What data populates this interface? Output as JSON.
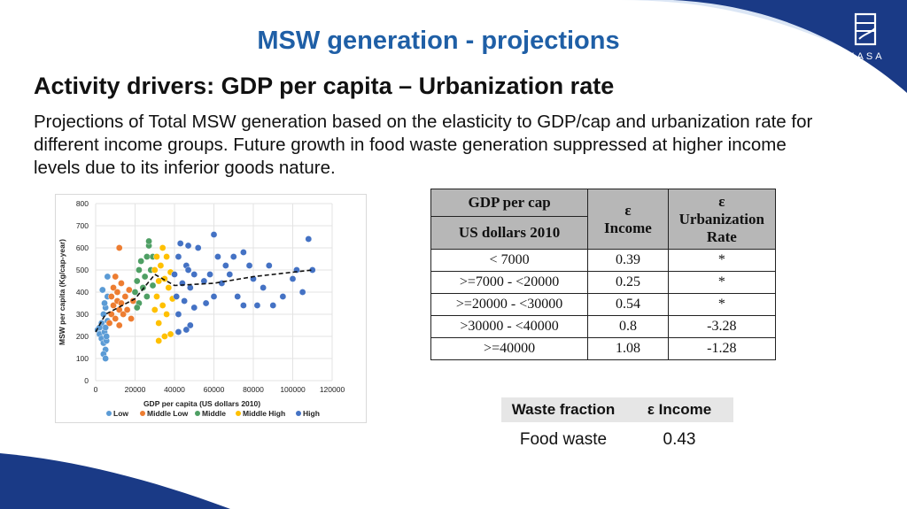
{
  "header": {
    "logo_text": "IIASA",
    "title": "MSW generation - projections"
  },
  "subtitle": "Activity drivers: GDP per capita – Urbanization rate",
  "description": "Projections of Total MSW generation based on the elasticity to GDP/cap and urbanization rate for different income groups. Future growth in food waste generation suppressed at higher income levels due to its inferior goods nature.",
  "colors": {
    "title": "#1f5fa6",
    "brand_navy": "#1a3a86",
    "low": "#5b9bd5",
    "middle_low": "#ed7d31",
    "middle": "#4e9f64",
    "middle_high": "#ffc000",
    "high": "#4472c4"
  },
  "chart_data": {
    "type": "scatter",
    "xlabel": "GDP per capita (US dollars 2010)",
    "ylabel": "MSW per capita (Kg/cap-year)",
    "xlim": [
      0,
      120000
    ],
    "ylim": [
      0,
      800
    ],
    "x_ticks": [
      "0",
      "20000",
      "40000",
      "60000",
      "80000",
      "100000",
      "120000"
    ],
    "y_ticks": [
      "0",
      "100",
      "200",
      "300",
      "400",
      "500",
      "600",
      "700",
      "800"
    ],
    "grid": true,
    "legend_position": "bottom",
    "series": [
      {
        "name": "Low",
        "color": "#5b9bd5",
        "points": [
          [
            1000,
            230
          ],
          [
            2000,
            210
          ],
          [
            3000,
            190
          ],
          [
            3000,
            260
          ],
          [
            4000,
            170
          ],
          [
            4000,
            300
          ],
          [
            4500,
            220
          ],
          [
            5000,
            140
          ],
          [
            5000,
            240
          ],
          [
            5000,
            330
          ],
          [
            5500,
            180
          ],
          [
            6000,
            270
          ],
          [
            6000,
            380
          ],
          [
            4000,
            120
          ],
          [
            5000,
            100
          ],
          [
            3500,
            410
          ],
          [
            6000,
            470
          ],
          [
            2000,
            240
          ],
          [
            4500,
            350
          ],
          [
            5500,
            200
          ]
        ]
      },
      {
        "name": "Middle Low",
        "color": "#ed7d31",
        "points": [
          [
            7000,
            260
          ],
          [
            8000,
            300
          ],
          [
            8000,
            380
          ],
          [
            9000,
            340
          ],
          [
            9000,
            420
          ],
          [
            10000,
            280
          ],
          [
            10000,
            470
          ],
          [
            11000,
            360
          ],
          [
            11000,
            400
          ],
          [
            12000,
            250
          ],
          [
            12000,
            320
          ],
          [
            13000,
            440
          ],
          [
            13000,
            350
          ],
          [
            14000,
            300
          ],
          [
            15000,
            380
          ],
          [
            16000,
            320
          ],
          [
            17000,
            410
          ],
          [
            18000,
            280
          ],
          [
            19000,
            360
          ],
          [
            12000,
            600
          ]
        ]
      },
      {
        "name": "Middle",
        "color": "#4e9f64",
        "points": [
          [
            20000,
            400
          ],
          [
            21000,
            450
          ],
          [
            22000,
            500
          ],
          [
            22000,
            350
          ],
          [
            23000,
            540
          ],
          [
            24000,
            420
          ],
          [
            25000,
            470
          ],
          [
            26000,
            560
          ],
          [
            26000,
            380
          ],
          [
            27000,
            610
          ],
          [
            28000,
            500
          ],
          [
            29000,
            430
          ],
          [
            29000,
            560
          ],
          [
            21000,
            330
          ],
          [
            27000,
            630
          ]
        ]
      },
      {
        "name": "Middle High",
        "color": "#ffc000",
        "points": [
          [
            30000,
            500
          ],
          [
            30000,
            320
          ],
          [
            31000,
            560
          ],
          [
            31000,
            380
          ],
          [
            32000,
            450
          ],
          [
            32000,
            260
          ],
          [
            33000,
            520
          ],
          [
            34000,
            600
          ],
          [
            34000,
            340
          ],
          [
            35000,
            460
          ],
          [
            36000,
            560
          ],
          [
            36000,
            300
          ],
          [
            37000,
            420
          ],
          [
            38000,
            490
          ],
          [
            38000,
            210
          ],
          [
            39000,
            370
          ],
          [
            32000,
            180
          ],
          [
            35000,
            200
          ]
        ]
      },
      {
        "name": "High",
        "color": "#4472c4",
        "points": [
          [
            40000,
            480
          ],
          [
            41000,
            380
          ],
          [
            42000,
            560
          ],
          [
            42000,
            300
          ],
          [
            43000,
            620
          ],
          [
            44000,
            440
          ],
          [
            45000,
            360
          ],
          [
            46000,
            520
          ],
          [
            47000,
            610
          ],
          [
            48000,
            420
          ],
          [
            48000,
            250
          ],
          [
            50000,
            480
          ],
          [
            50000,
            330
          ],
          [
            52000,
            600
          ],
          [
            55000,
            450
          ],
          [
            56000,
            350
          ],
          [
            58000,
            480
          ],
          [
            60000,
            660
          ],
          [
            60000,
            380
          ],
          [
            62000,
            560
          ],
          [
            64000,
            440
          ],
          [
            66000,
            520
          ],
          [
            68000,
            480
          ],
          [
            70000,
            560
          ],
          [
            72000,
            380
          ],
          [
            75000,
            580
          ],
          [
            78000,
            520
          ],
          [
            80000,
            460
          ],
          [
            82000,
            340
          ],
          [
            85000,
            420
          ],
          [
            88000,
            520
          ],
          [
            95000,
            380
          ],
          [
            100000,
            460
          ],
          [
            102000,
            500
          ],
          [
            105000,
            400
          ],
          [
            108000,
            640
          ],
          [
            110000,
            500
          ],
          [
            75000,
            340
          ],
          [
            90000,
            340
          ],
          [
            42000,
            220
          ],
          [
            46000,
            230
          ],
          [
            47000,
            500
          ]
        ]
      }
    ],
    "trend_line": [
      [
        0,
        220
      ],
      [
        5000,
        300
      ],
      [
        20000,
        370
      ],
      [
        30000,
        480
      ],
      [
        40000,
        430
      ],
      [
        60000,
        440
      ],
      [
        80000,
        470
      ],
      [
        100000,
        490
      ],
      [
        110000,
        500
      ]
    ]
  },
  "elasticity_table": {
    "headers": {
      "gdp": "GDP per cap",
      "gdp_unit": "US dollars 2010",
      "eps_income_symbol": "ε",
      "eps_income_label": "Income",
      "eps_urban_symbol": "ε",
      "eps_urban_label": "Urbanization Rate"
    },
    "rows": [
      {
        "gdp": "< 7000",
        "income": "0.39",
        "urban": "*"
      },
      {
        "gdp": ">=7000  - <20000",
        "income": "0.25",
        "urban": "*"
      },
      {
        "gdp": ">=20000  - <30000",
        "income": "0.54",
        "urban": "*"
      },
      {
        "gdp": ">30000 - <40000",
        "income": "0.8",
        "urban": "-3.28"
      },
      {
        "gdp": ">=40000",
        "income": "1.08",
        "urban": "-1.28"
      }
    ]
  },
  "waste_table": {
    "header_fraction": "Waste fraction",
    "header_income": "ε  Income",
    "row_fraction": "Food waste",
    "row_value": "0.43"
  }
}
